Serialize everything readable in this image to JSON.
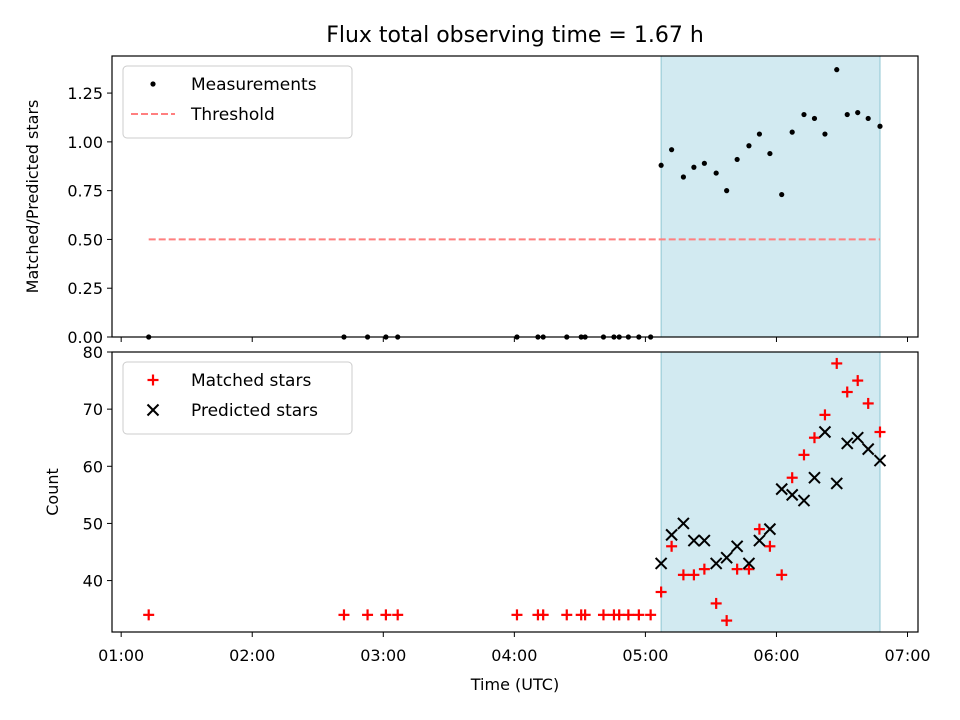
{
  "chart_data": {
    "title": "Flux total observing time = 1.67 h",
    "xlabel": "Time (UTC)",
    "x_ticks": [
      "01:00",
      "02:00",
      "03:00",
      "04:00",
      "05:00",
      "06:00",
      "07:00"
    ],
    "x_ticks_hours": [
      1,
      2,
      3,
      4,
      5,
      6,
      7
    ],
    "xlim_hours": [
      0.93,
      7.08
    ],
    "highlight_span_hours": [
      5.12,
      6.79
    ],
    "highlight_color": "#add8e6",
    "panels": [
      {
        "type": "scatter",
        "ylabel": "Matched/Predicted stars",
        "ylim": [
          0,
          1.44
        ],
        "y_ticks": [
          "0.00",
          "0.25",
          "0.50",
          "0.75",
          "1.00",
          "1.25"
        ],
        "y_tick_values": [
          0,
          0.25,
          0.5,
          0.75,
          1.0,
          1.25
        ],
        "legend": "top-left",
        "series": [
          {
            "name": "Measurements",
            "marker": "dot",
            "color": "#000000",
            "x": [
              1.21,
              2.7,
              2.88,
              3.02,
              3.11,
              4.02,
              4.18,
              4.22,
              4.4,
              4.51,
              4.54,
              4.68,
              4.76,
              4.8,
              4.87,
              4.95,
              5.04,
              5.12,
              5.2,
              5.29,
              5.37,
              5.45,
              5.54,
              5.62,
              5.7,
              5.79,
              5.87,
              5.95,
              6.04,
              6.12,
              6.21,
              6.29,
              6.37,
              6.46,
              6.54,
              6.62,
              6.7,
              6.79
            ],
            "y": [
              0,
              0,
              0,
              0,
              0,
              0,
              0,
              0,
              0,
              0,
              0,
              0,
              0,
              0,
              0,
              0,
              0,
              0.88,
              0.96,
              0.82,
              0.87,
              0.89,
              0.84,
              0.75,
              0.91,
              0.98,
              1.04,
              0.94,
              0.73,
              1.05,
              1.14,
              1.12,
              1.04,
              1.37,
              1.14,
              1.15,
              1.12,
              1.08
            ]
          },
          {
            "name": "Threshold",
            "marker": "dashed-line",
            "color": "#ff7f7f",
            "x": [
              1.21,
              6.79
            ],
            "y": [
              0.5,
              0.5
            ]
          }
        ]
      },
      {
        "type": "scatter",
        "ylabel": "Count",
        "ylim": [
          31,
          80
        ],
        "y_ticks": [
          "40",
          "50",
          "60",
          "70",
          "80"
        ],
        "y_tick_values": [
          40,
          50,
          60,
          70,
          80
        ],
        "legend": "top-left",
        "series": [
          {
            "name": "Matched stars",
            "marker": "plus",
            "color": "#ff0000",
            "x": [
              1.21,
              2.7,
              2.88,
              3.02,
              3.11,
              4.02,
              4.18,
              4.22,
              4.4,
              4.51,
              4.54,
              4.68,
              4.76,
              4.8,
              4.87,
              4.95,
              5.04,
              5.12,
              5.2,
              5.29,
              5.37,
              5.45,
              5.54,
              5.62,
              5.7,
              5.79,
              5.87,
              5.95,
              6.04,
              6.12,
              6.21,
              6.29,
              6.37,
              6.46,
              6.54,
              6.62,
              6.7,
              6.79
            ],
            "y": [
              34,
              34,
              34,
              34,
              34,
              34,
              34,
              34,
              34,
              34,
              34,
              34,
              34,
              34,
              34,
              34,
              34,
              38,
              46,
              41,
              41,
              42,
              36,
              33,
              42,
              42,
              49,
              46,
              41,
              58,
              62,
              65,
              69,
              78,
              73,
              75,
              71,
              66
            ]
          },
          {
            "name": "Predicted stars",
            "marker": "x",
            "color": "#000000",
            "x": [
              5.12,
              5.2,
              5.29,
              5.37,
              5.45,
              5.54,
              5.62,
              5.7,
              5.79,
              5.87,
              5.95,
              6.04,
              6.12,
              6.21,
              6.29,
              6.37,
              6.46,
              6.54,
              6.62,
              6.7,
              6.79
            ],
            "y": [
              43,
              48,
              50,
              47,
              47,
              43,
              44,
              46,
              43,
              47,
              49,
              56,
              55,
              54,
              58,
              66,
              57,
              64,
              65,
              63,
              61
            ]
          }
        ]
      }
    ]
  }
}
